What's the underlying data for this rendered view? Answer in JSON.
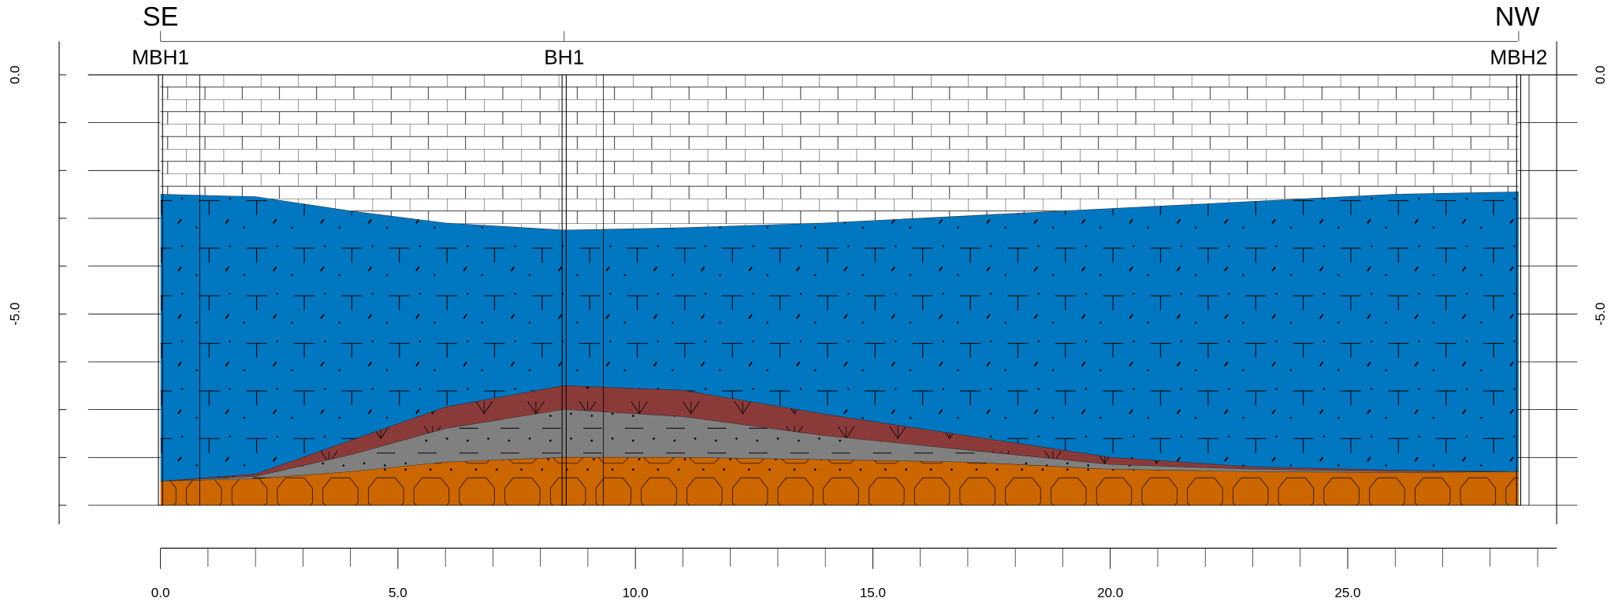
{
  "chart_data": {
    "type": "section",
    "left_label": "SE",
    "right_label": "NW",
    "boreholes": [
      {
        "name": "MBH1",
        "x": 0
      },
      {
        "name": "BH1",
        "x": 8.5
      },
      {
        "name": "MBH2",
        "x": 28.6
      }
    ],
    "x": [
      0,
      2,
      4,
      6,
      8.5,
      11,
      14,
      17,
      20,
      23,
      26,
      28.6
    ],
    "layers": [
      {
        "color": "#ffffff",
        "values": [
          -2.5,
          -2.55,
          -2.85,
          -3.1,
          -3.25,
          -3.2,
          -3.1,
          -2.95,
          -2.8,
          -2.65,
          -2.5,
          -2.45
        ]
      },
      {
        "color": "#0077c0",
        "values": [
          -8.5,
          -8.35,
          -7.65,
          -6.95,
          -6.5,
          -6.6,
          -7.1,
          -7.55,
          -8.0,
          -8.2,
          -8.27,
          -8.3
        ]
      },
      {
        "color": "#8b3a3a",
        "values": [
          -8.5,
          -8.4,
          -7.95,
          -7.4,
          -7.0,
          -7.15,
          -7.55,
          -7.85,
          -8.15,
          -8.25,
          -8.3,
          -8.3
        ]
      },
      {
        "color": "#808080",
        "values": [
          -8.5,
          -8.45,
          -8.3,
          -8.1,
          -8.0,
          -8.0,
          -8.05,
          -8.1,
          -8.25,
          -8.3,
          -8.32,
          -8.3
        ]
      },
      {
        "color": "#cc6600",
        "values": [
          -9,
          -9,
          -9,
          -9,
          -9,
          -9,
          -9,
          -9,
          -9,
          -9,
          -9,
          -9
        ]
      }
    ],
    "xlim": [
      0,
      29.4
    ],
    "xticks": [
      {
        "value": 0,
        "label": "0.0"
      },
      {
        "value": 5,
        "label": "5.0"
      },
      {
        "value": 10,
        "label": "10.0"
      },
      {
        "value": 15,
        "label": "15.0"
      },
      {
        "value": 20,
        "label": "20.0"
      },
      {
        "value": 25,
        "label": "25.0"
      }
    ],
    "xminorticks": [
      1,
      2,
      3,
      4,
      6,
      7,
      8,
      9,
      11,
      12,
      13,
      14,
      16,
      17,
      18,
      19,
      21,
      22,
      23,
      24,
      26,
      27,
      28,
      29
    ],
    "ylim": [
      -9.4,
      0.7
    ],
    "yticks": [
      {
        "value": 0,
        "label": "0.0"
      },
      {
        "value": -5,
        "label": "-5.0"
      }
    ],
    "yminorticks": [
      -1,
      -2,
      -3,
      -4,
      -6,
      -7,
      -8,
      -9
    ]
  }
}
